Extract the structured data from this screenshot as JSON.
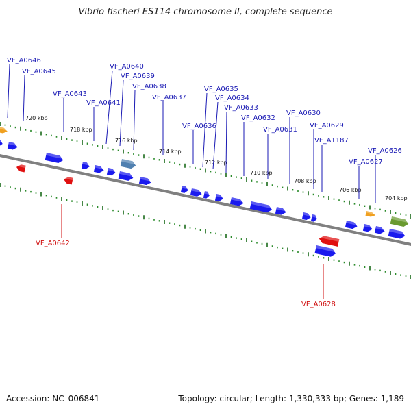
{
  "title": "Vibrio fischeri ES114 chromosome II, complete sequence",
  "footer": {
    "accession": "Accession: NC_006841",
    "summary": "Topology: circular; Length: 1,330,333 bp; Genes: 1,189"
  },
  "scale_labels": [
    "720 kbp",
    "718 kbp",
    "716 kbp",
    "714 kbp",
    "712 kbp",
    "710 kbp",
    "708 kbp",
    "706 kbp",
    "704 kbp"
  ],
  "colors": {
    "forward_gene": "#1a1aee",
    "reverse_gene": "#e01010",
    "forward_label": "#1a1ab4",
    "reverse_label": "#d01010",
    "backbone": "#808080",
    "tick_minor": "#2a8a2a",
    "tick_major": "#1a6a1a",
    "accent_orange": "#f0a020",
    "accent_steel": "#5080b0",
    "accent_olive": "#6a9a30"
  },
  "genes_forward": [
    "VF_A0646",
    "VF_A0645",
    "VF_A0643",
    "VF_A0641",
    "VF_A0640",
    "VF_A0639",
    "VF_A0638",
    "VF_A0637",
    "VF_A0636",
    "VF_A0635",
    "VF_A0634",
    "VF_A0633",
    "VF_A0632",
    "VF_A0631",
    "VF_A0630",
    "VF_A0629",
    "VF_A1187",
    "VF_A0627",
    "VF_A0626"
  ],
  "genes_reverse": [
    "VF_A0642",
    "VF_A0628"
  ]
}
